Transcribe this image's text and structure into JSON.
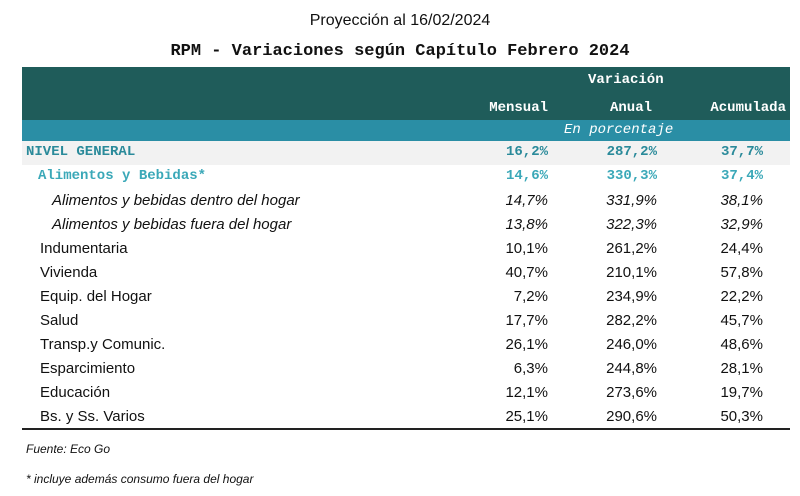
{
  "supertitle": "Proyección al 16/02/2024",
  "title": "RPM - Variaciones según Capítulo Febrero 2024",
  "header": {
    "group": "Variación",
    "cols": [
      "Mensual",
      "Anual",
      "Acumulada"
    ],
    "unit": "En porcentaje"
  },
  "rows": [
    {
      "label": "NIVEL GENERAL",
      "values": [
        "16,2%",
        "287,2%",
        "37,7%"
      ]
    },
    {
      "label": "Alimentos y Bebidas*",
      "values": [
        "14,6%",
        "330,3%",
        "37,4%"
      ]
    },
    {
      "label": "Alimentos y bebidas dentro del hogar",
      "values": [
        "14,7%",
        "331,9%",
        "38,1%"
      ]
    },
    {
      "label": "Alimentos y bebidas fuera del hogar",
      "values": [
        "13,8%",
        "322,3%",
        "32,9%"
      ]
    },
    {
      "label": "Indumentaria",
      "values": [
        "10,1%",
        "261,2%",
        "24,4%"
      ]
    },
    {
      "label": "Vivienda",
      "values": [
        "40,7%",
        "210,1%",
        "57,8%"
      ]
    },
    {
      "label": "Equip. del Hogar",
      "values": [
        "7,2%",
        "234,9%",
        "22,2%"
      ]
    },
    {
      "label": "Salud",
      "values": [
        "17,7%",
        "282,2%",
        "45,7%"
      ]
    },
    {
      "label": "Transp.y Comunic.",
      "values": [
        "26,1%",
        "246,0%",
        "48,6%"
      ]
    },
    {
      "label": "Esparcimiento",
      "values": [
        "6,3%",
        "244,8%",
        "28,1%"
      ]
    },
    {
      "label": "Educación",
      "values": [
        "12,1%",
        "273,6%",
        "19,7%"
      ]
    },
    {
      "label": "Bs. y Ss. Varios",
      "values": [
        "25,1%",
        "290,6%",
        "50,3%"
      ]
    }
  ],
  "source": "Fuente: Eco Go",
  "footnote": "* incluye además consumo fuera del hogar",
  "colors": {
    "header": "#1f5c5a",
    "band": "#2a8ea5",
    "accent": "#2a8a9a"
  }
}
